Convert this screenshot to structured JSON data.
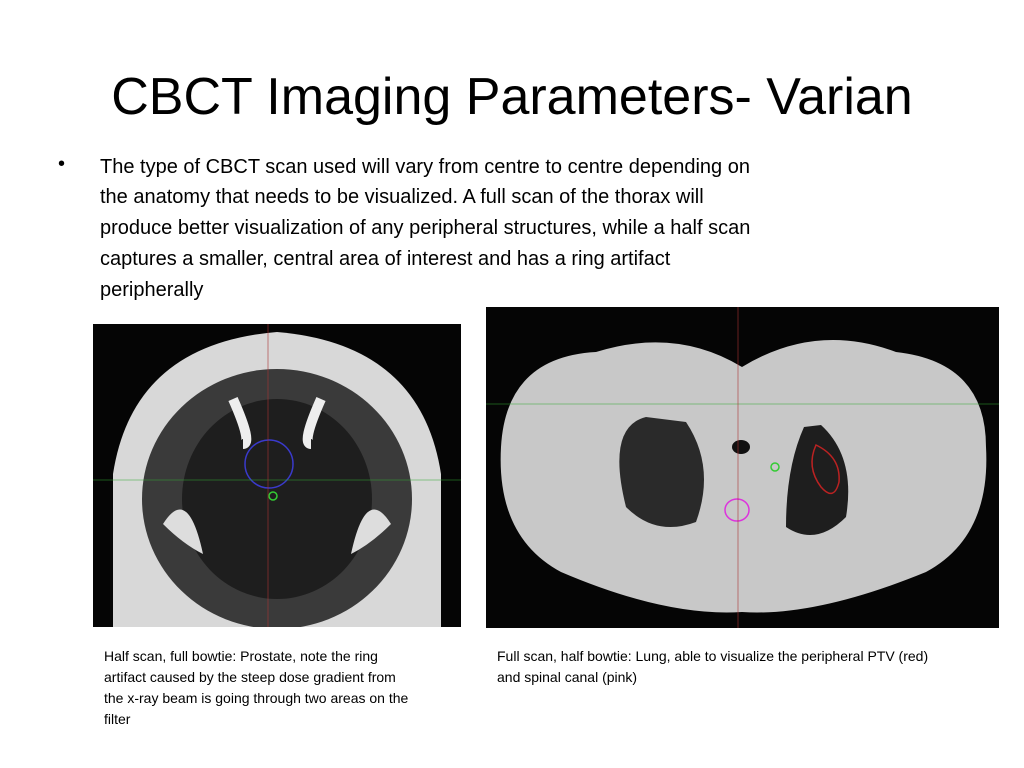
{
  "slide": {
    "title": "CBCT Imaging Parameters- Varian",
    "bullet": {
      "marker": "•",
      "lines": [
        "The type of CBCT scan used will vary from centre to centre depending on",
        "the anatomy that needs to be visualized. A full scan of the thorax will",
        "produce better visualization of any peripheral structures, while a half scan",
        "captures a smaller, central area of interest and has a ring artifact",
        "peripherally"
      ]
    },
    "captions": [
      {
        "lines": [
          "Half scan, full bowtie: Prostate, note the ring",
          "artifact caused by the steep dose gradient from",
          "the x-ray beam is going through two areas on the",
          "filter"
        ]
      },
      {
        "lines": [
          "Full scan, half bowtie: Lung, able to visualize the peripheral PTV (red)",
          "and spinal canal (pink)"
        ]
      }
    ]
  }
}
